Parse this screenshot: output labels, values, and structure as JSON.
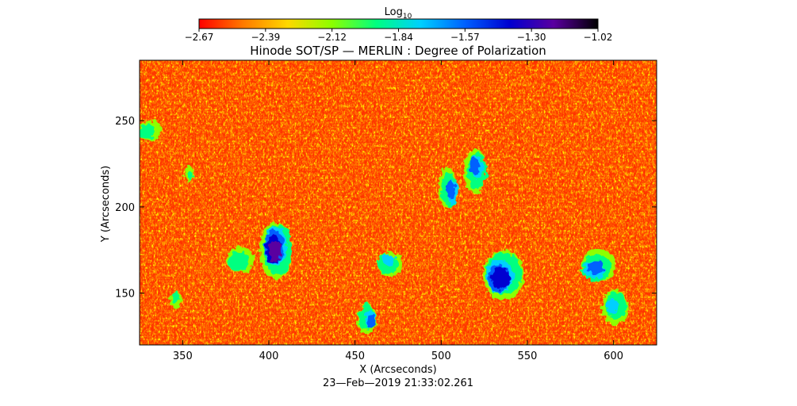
{
  "chart_data": {
    "type": "heatmap",
    "title": "Hinode SOT/SP — MERLIN : Degree of Polarization",
    "xlabel": "X (Arcseconds)",
    "ylabel": "Y (Arcseconds)",
    "timestamp": "23—Feb—2019 21:33:02.261",
    "xlim": [
      325,
      625
    ],
    "ylim": [
      120,
      285
    ],
    "x_ticks": [
      350,
      400,
      450,
      500,
      550,
      600
    ],
    "y_ticks": [
      150,
      200,
      250
    ],
    "colorbar": {
      "label_main": "Log",
      "label_sub": "10",
      "range": [
        -2.67,
        -1.02
      ],
      "ticks": [
        "−2.67",
        "−2.39",
        "−2.12",
        "−1.84",
        "−1.57",
        "−1.30",
        "−1.02"
      ],
      "colors": [
        "#ff0000",
        "#ff7a00",
        "#ffd800",
        "#8cff00",
        "#00ff80",
        "#00d0ff",
        "#0060ff",
        "#0000d0",
        "#5a00a0",
        "#000000"
      ]
    },
    "background_level": -2.55,
    "features": [
      {
        "x": 404,
        "y": 176,
        "peak": -1.25
      },
      {
        "x": 535,
        "y": 160,
        "peak": -1.3
      },
      {
        "x": 590,
        "y": 165,
        "peak": -1.5
      },
      {
        "x": 470,
        "y": 168,
        "peak": -1.6
      },
      {
        "x": 458,
        "y": 135,
        "peak": -1.5
      },
      {
        "x": 505,
        "y": 210,
        "peak": -1.45
      },
      {
        "x": 520,
        "y": 222,
        "peak": -1.55
      },
      {
        "x": 600,
        "y": 142,
        "peak": -1.7
      },
      {
        "x": 382,
        "y": 168,
        "peak": -1.75
      },
      {
        "x": 330,
        "y": 245,
        "peak": -1.75
      },
      {
        "x": 347,
        "y": 147,
        "peak": -1.9
      },
      {
        "x": 355,
        "y": 218,
        "peak": -2.0
      }
    ]
  }
}
